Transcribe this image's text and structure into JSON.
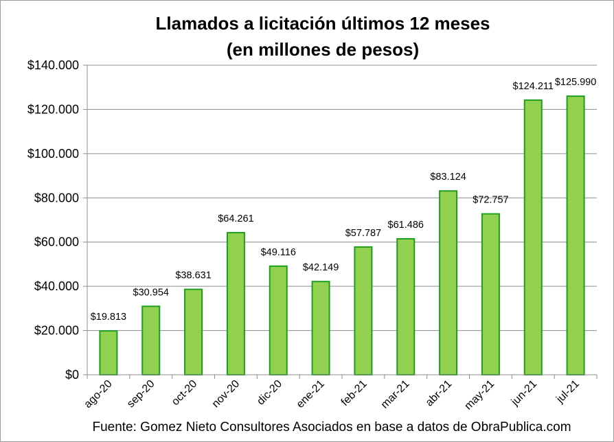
{
  "chart_data": {
    "type": "bar",
    "title": "Llamados a licitación últimos 12 meses",
    "subtitle": "(en millones de pesos)",
    "categories": [
      "ago-20",
      "sep-20",
      "oct-20",
      "nov-20",
      "dic-20",
      "ene-21",
      "feb-21",
      "mar-21",
      "abr-21",
      "may-21",
      "jun-21",
      "jul-21"
    ],
    "values": [
      19813,
      30954,
      38631,
      64261,
      49116,
      42149,
      57787,
      61486,
      83124,
      72757,
      124211,
      125990
    ],
    "data_labels": [
      "$19.813",
      "$30.954",
      "$38.631",
      "$64.261",
      "$49.116",
      "$42.149",
      "$57.787",
      "$61.486",
      "$83.124",
      "$72.757",
      "$124.211",
      "$125.990"
    ],
    "ylim": [
      0,
      140000
    ],
    "yticks": [
      0,
      20000,
      40000,
      60000,
      80000,
      100000,
      120000,
      140000
    ],
    "ytick_labels": [
      "$0",
      "$20.000",
      "$40.000",
      "$60.000",
      "$80.000",
      "$100.000",
      "$120.000",
      "$140.000"
    ],
    "xlabel": "",
    "ylabel": "",
    "grid": true,
    "legend": false,
    "bar_color": "#92d050",
    "bar_edge_color": "#1e9e1e",
    "source": "Fuente: Gomez Nieto Consultores Asociados en base a datos de ObraPublica.com"
  }
}
